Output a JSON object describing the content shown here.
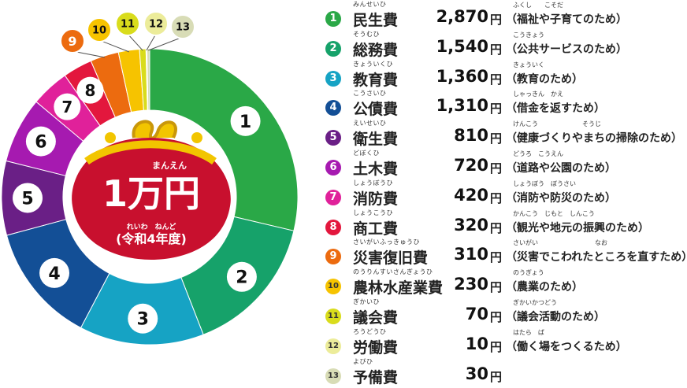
{
  "chart_data": {
    "type": "pie",
    "center_title": "1万円",
    "center_title_ruby": "まんえん",
    "center_subtitle": "(令和4年度)",
    "center_subtitle_ruby": "れいわ　ねんど",
    "unit": "円",
    "slices": [
      {
        "number": "1",
        "name": "民生費",
        "ruby": "みんせいひ",
        "value": 2870,
        "amount_label": "2,870",
        "note": "（福祉や子育てのため）",
        "note_ruby": "ふくし　　こそだ",
        "color": "#2aa847"
      },
      {
        "number": "2",
        "name": "総務費",
        "ruby": "そうむひ",
        "value": 1540,
        "amount_label": "1,540",
        "note": "（公共サービスのため）",
        "note_ruby": "こうきょう",
        "color": "#16a26a"
      },
      {
        "number": "3",
        "name": "教育費",
        "ruby": "きょういくひ",
        "value": 1360,
        "amount_label": "1,360",
        "note": "（教育のため）",
        "note_ruby": "きょういく",
        "color": "#16a3c4"
      },
      {
        "number": "4",
        "name": "公債費",
        "ruby": "こうさいひ",
        "value": 1310,
        "amount_label": "1,310",
        "note": "（借金を返すため）",
        "note_ruby": "しゃっきん　かえ",
        "color": "#134f96"
      },
      {
        "number": "5",
        "name": "衛生費",
        "ruby": "えいせいひ",
        "value": 810,
        "amount_label": "810",
        "note": "（健康づくりやまちの掃除のため）",
        "note_ruby": "けんこう　　　　　　　そうじ",
        "color": "#6a1f86"
      },
      {
        "number": "6",
        "name": "土木費",
        "ruby": "どぼくひ",
        "value": 720,
        "amount_label": "720",
        "note": "（道路や公園のため）",
        "note_ruby": "どうろ　こうえん",
        "color": "#a61ab0"
      },
      {
        "number": "7",
        "name": "消防費",
        "ruby": "しょうぼうひ",
        "value": 420,
        "amount_label": "420",
        "note": "（消防や防災のため）",
        "note_ruby": "しょうぼう　ぼうさい",
        "color": "#e0219a"
      },
      {
        "number": "8",
        "name": "商工費",
        "ruby": "しょうこうひ",
        "value": 320,
        "amount_label": "320",
        "note": "（観光や地元の振興のため）",
        "note_ruby": "かんこう　じもと　しんこう",
        "color": "#e3173d"
      },
      {
        "number": "9",
        "name": "災害復旧費",
        "ruby": "さいがいふっきゅうひ",
        "value": 310,
        "amount_label": "310",
        "note": "（災害でこわれたところを直すため）",
        "note_ruby": "さいがい　　　　　　　　　なお",
        "color": "#ec6b0f"
      },
      {
        "number": "10",
        "name": "農林水産業費",
        "ruby": "のうりんすいさんぎょうひ",
        "value": 230,
        "amount_label": "230",
        "note": "（農業のため）",
        "note_ruby": "のうぎょう",
        "color": "#f6c300"
      },
      {
        "number": "11",
        "name": "議会費",
        "ruby": "ぎかいひ",
        "value": 70,
        "amount_label": "70",
        "note": "（議会活動のため）",
        "note_ruby": "ぎかいかつどう",
        "color": "#d9dc1c"
      },
      {
        "number": "12",
        "name": "労働費",
        "ruby": "ろうどうひ",
        "value": 10,
        "amount_label": "10",
        "note": "（働く場をつくるため）",
        "note_ruby": "はたら　ば",
        "color": "#ecec9a"
      },
      {
        "number": "13",
        "name": "予備費",
        "ruby": "よびひ",
        "value": 30,
        "amount_label": "30",
        "note": "",
        "note_ruby": "",
        "color": "#d8dcb6"
      }
    ]
  }
}
